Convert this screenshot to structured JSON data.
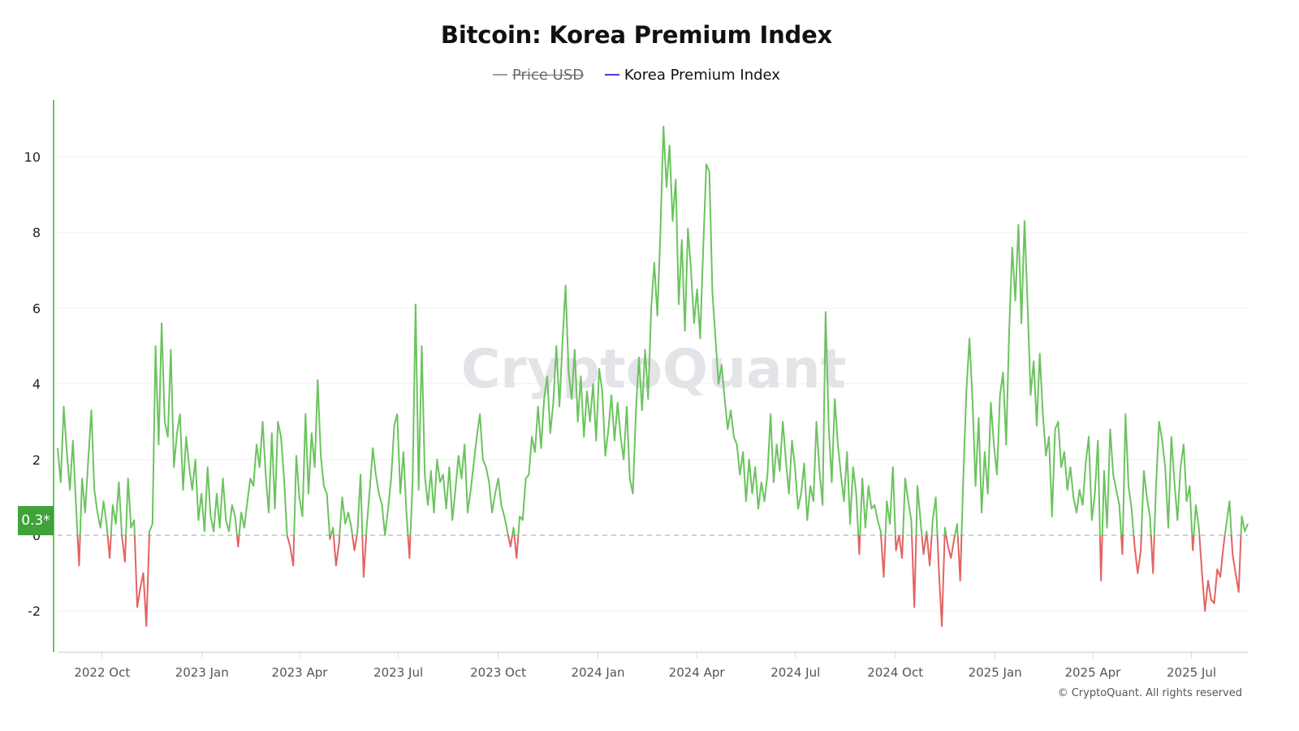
{
  "chart_data": {
    "type": "line",
    "title": "Bitcoin: Korea Premium Index",
    "legend": [
      {
        "name": "Price USD",
        "color": "#9e9e9e",
        "hidden": true
      },
      {
        "name": "Korea Premium Index",
        "color": "#4b3bdb",
        "hidden": false
      }
    ],
    "legend_placement": "top-center",
    "xlabel": "",
    "ylabel": "",
    "ylim": [
      -3.1,
      11.5
    ],
    "yticks": [
      -2,
      0,
      2,
      4,
      6,
      8,
      10
    ],
    "ytick_labels": [
      "-2",
      "0",
      "2",
      "4",
      "6",
      "8",
      "10"
    ],
    "x_start": "2022-08-21",
    "x_end": "2025-08-22",
    "x_step_days": 4,
    "xticks": [
      "2022-10-01",
      "2023-01-01",
      "2023-04-01",
      "2023-07-01",
      "2023-10-01",
      "2024-01-01",
      "2024-04-01",
      "2024-07-01",
      "2024-10-01",
      "2025-01-01",
      "2025-04-01",
      "2025-07-01"
    ],
    "xtick_labels": [
      "2022 Oct",
      "2023 Jan",
      "2023 Apr",
      "2023 Jul",
      "2023 Oct",
      "2024 Jan",
      "2024 Apr",
      "2024 Jul",
      "2024 Oct",
      "2025 Jan",
      "2025 Apr",
      "2025 Jul"
    ],
    "positive_color": "#6cc35f",
    "negative_color": "#e36363",
    "zero_line": 0,
    "current_value_label": "0.3*",
    "grid": true,
    "values": [
      2.3,
      1.4,
      3.4,
      2.2,
      1.2,
      2.5,
      0.8,
      -0.8,
      1.5,
      0.6,
      2.0,
      3.3,
      1.2,
      0.6,
      0.2,
      0.9,
      0.3,
      -0.6,
      0.8,
      0.3,
      1.4,
      0.0,
      -0.7,
      1.5,
      0.2,
      0.4,
      -1.9,
      -1.4,
      -1.0,
      -2.4,
      0.1,
      0.3,
      5.0,
      2.4,
      5.6,
      3.0,
      2.6,
      4.9,
      1.8,
      2.7,
      3.2,
      1.2,
      2.6,
      1.8,
      1.2,
      2.0,
      0.4,
      1.1,
      0.1,
      1.8,
      0.5,
      0.1,
      1.1,
      0.2,
      1.5,
      0.4,
      0.1,
      0.8,
      0.5,
      -0.3,
      0.6,
      0.2,
      0.9,
      1.5,
      1.3,
      2.4,
      1.8,
      3.0,
      1.6,
      0.6,
      2.7,
      0.7,
      3.0,
      2.6,
      1.5,
      0.0,
      -0.3,
      -0.8,
      2.1,
      1.0,
      0.5,
      3.2,
      1.1,
      2.7,
      1.8,
      4.1,
      2.1,
      1.3,
      1.1,
      -0.1,
      0.2,
      -0.8,
      -0.2,
      1.0,
      0.3,
      0.6,
      0.2,
      -0.4,
      0.1,
      1.6,
      -1.1,
      0.2,
      1.2,
      2.3,
      1.6,
      1.1,
      0.8,
      0.0,
      0.7,
      1.5,
      2.9,
      3.2,
      1.1,
      2.2,
      0.6,
      -0.6,
      1.4,
      6.1,
      1.2,
      5.0,
      1.6,
      0.8,
      1.7,
      0.6,
      2.0,
      1.4,
      1.6,
      0.7,
      1.8,
      0.4,
      1.2,
      2.1,
      1.5,
      2.4,
      0.6,
      1.2,
      1.9,
      2.6,
      3.2,
      2.0,
      1.8,
      1.4,
      0.6,
      1.1,
      1.5,
      0.8,
      0.5,
      0.1,
      -0.3,
      0.2,
      -0.6,
      0.5,
      0.4,
      1.5,
      1.6,
      2.6,
      2.2,
      3.4,
      2.3,
      3.6,
      4.2,
      2.7,
      3.5,
      5.0,
      3.4,
      5.1,
      6.6,
      4.3,
      3.6,
      4.9,
      3.0,
      4.2,
      2.6,
      3.8,
      3.0,
      4.0,
      2.5,
      4.4,
      3.8,
      2.1,
      2.8,
      3.7,
      2.5,
      3.5,
      2.6,
      2.0,
      3.4,
      1.5,
      1.1,
      3.3,
      4.7,
      3.3,
      4.9,
      3.6,
      6.0,
      7.2,
      5.8,
      8.0,
      10.8,
      9.2,
      10.3,
      8.3,
      9.4,
      6.1,
      7.8,
      5.4,
      8.1,
      7.0,
      5.6,
      6.5,
      5.2,
      7.6,
      9.8,
      9.6,
      6.4,
      5.2,
      4.0,
      4.5,
      3.6,
      2.8,
      3.3,
      2.6,
      2.4,
      1.6,
      2.2,
      0.9,
      2.0,
      1.1,
      1.8,
      0.7,
      1.4,
      0.9,
      1.6,
      3.2,
      1.4,
      2.4,
      1.7,
      3.0,
      2.0,
      1.1,
      2.5,
      1.8,
      0.7,
      1.1,
      1.9,
      0.4,
      1.3,
      0.9,
      3.0,
      1.7,
      0.8,
      5.9,
      2.9,
      1.4,
      3.6,
      2.4,
      1.6,
      0.9,
      2.2,
      0.3,
      1.8,
      1.1,
      -0.5,
      1.5,
      0.2,
      1.3,
      0.7,
      0.8,
      0.4,
      0.1,
      -1.1,
      0.9,
      0.3,
      1.8,
      -0.4,
      0.0,
      -0.6,
      1.5,
      0.9,
      0.4,
      -1.9,
      1.3,
      0.4,
      -0.5,
      0.1,
      -0.8,
      0.4,
      1.0,
      -0.9,
      -2.4,
      0.2,
      -0.3,
      -0.6,
      -0.1,
      0.3,
      -1.2,
      1.5,
      3.8,
      5.2,
      3.6,
      1.3,
      3.1,
      0.6,
      2.2,
      1.1,
      3.5,
      2.4,
      1.6,
      3.7,
      4.3,
      2.4,
      5.4,
      7.6,
      6.2,
      8.2,
      5.6,
      8.3,
      6.1,
      3.7,
      4.6,
      2.9,
      4.8,
      3.2,
      2.1,
      2.6,
      0.5,
      2.8,
      3.0,
      1.8,
      2.2,
      1.2,
      1.8,
      1.0,
      0.6,
      1.2,
      0.8,
      1.9,
      2.6,
      0.4,
      1.1,
      2.5,
      -1.2,
      1.7,
      0.2,
      2.8,
      1.6,
      1.2,
      0.8,
      -0.5,
      3.2,
      1.3,
      0.7,
      -0.3,
      -1.0,
      -0.4,
      1.7,
      1.0,
      0.5,
      -1.0,
      1.3,
      3.0,
      2.5,
      1.8,
      0.2,
      2.6,
      1.4,
      0.4,
      1.8,
      2.4,
      0.9,
      1.3,
      -0.4,
      0.8,
      0.2,
      -1.0,
      -2.0,
      -1.2,
      -1.7,
      -1.8,
      -0.9,
      -1.1,
      -0.3,
      0.3,
      0.9,
      -0.5,
      -1.0,
      -1.5,
      0.5,
      0.1,
      0.3
    ]
  },
  "watermark": "CryptoQuant",
  "copyright": "© CryptoQuant. All rights reserved"
}
